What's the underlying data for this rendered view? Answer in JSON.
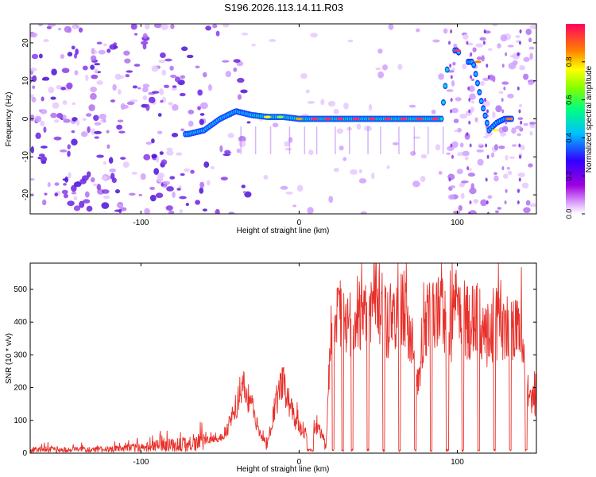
{
  "figure": {
    "title": "S196.2026.113.14.11.R03"
  },
  "chart_data": [
    {
      "type": "heatmap",
      "title": "S196.2026.113.14.11.R03",
      "xlabel": "Height of straight line (km)",
      "ylabel": "Frequency (Hz)",
      "xlim": [
        -170,
        150
      ],
      "ylim": [
        -25,
        25
      ],
      "xticks": [
        -100,
        0,
        100
      ],
      "yticks": [
        -20,
        -10,
        0,
        10,
        20
      ],
      "colorbar": {
        "label": "Normalized spectral amplitude",
        "range": [
          0,
          1
        ],
        "ticks": [
          "0.0",
          "0.2",
          "0.4",
          "0.6",
          "0.8"
        ],
        "colors": [
          "#ffffff",
          "#a000e0",
          "#3000ff",
          "#00c0ff",
          "#00ff80",
          "#80ff00",
          "#ffff00",
          "#ff8000",
          "#ff0060"
        ]
      },
      "ridge": {
        "x": [
          -70,
          -60,
          -50,
          -40,
          -30,
          -20,
          -10,
          0,
          10,
          20,
          30,
          40,
          50,
          60,
          70,
          80,
          90,
          95,
          100,
          105,
          110,
          115,
          120,
          125,
          130,
          135
        ],
        "frequency_hz": [
          -4,
          -3,
          0,
          2,
          1,
          0.5,
          0.5,
          0,
          0,
          0,
          0,
          0,
          0,
          0,
          0,
          0,
          0,
          18,
          18,
          15,
          15,
          5,
          -3,
          -1,
          0,
          0
        ]
      }
    },
    {
      "type": "line",
      "title": "",
      "xlabel": "Height of straight line (km)",
      "ylabel": "SNR (10 * v/v)",
      "xlim": [
        -170,
        150
      ],
      "ylim": [
        0,
        580
      ],
      "xticks": [
        -100,
        0,
        100
      ],
      "yticks": [
        0,
        100,
        200,
        300,
        400,
        500
      ],
      "color": "#e8302a",
      "series": [
        {
          "name": "SNR",
          "x": [
            -170,
            -160,
            -150,
            -140,
            -130,
            -120,
            -110,
            -100,
            -90,
            -80,
            -70,
            -60,
            -50,
            -45,
            -40,
            -35,
            -30,
            -25,
            -20,
            -15,
            -10,
            -5,
            0,
            5,
            10,
            15,
            17,
            20,
            25,
            30,
            35,
            40,
            45,
            50,
            55,
            60,
            65,
            70,
            75,
            80,
            85,
            90,
            95,
            100,
            105,
            110,
            115,
            120,
            125,
            130,
            135,
            140,
            145,
            150
          ],
          "values": [
            12,
            15,
            12,
            13,
            12,
            15,
            16,
            20,
            25,
            30,
            32,
            40,
            50,
            80,
            150,
            210,
            160,
            60,
            30,
            160,
            230,
            140,
            80,
            60,
            90,
            60,
            20,
            400,
            430,
            420,
            450,
            430,
            470,
            520,
            420,
            430,
            470,
            410,
            200,
            420,
            460,
            450,
            400,
            470,
            430,
            430,
            420,
            380,
            420,
            380,
            400,
            370,
            200,
            150
          ]
        }
      ]
    }
  ]
}
